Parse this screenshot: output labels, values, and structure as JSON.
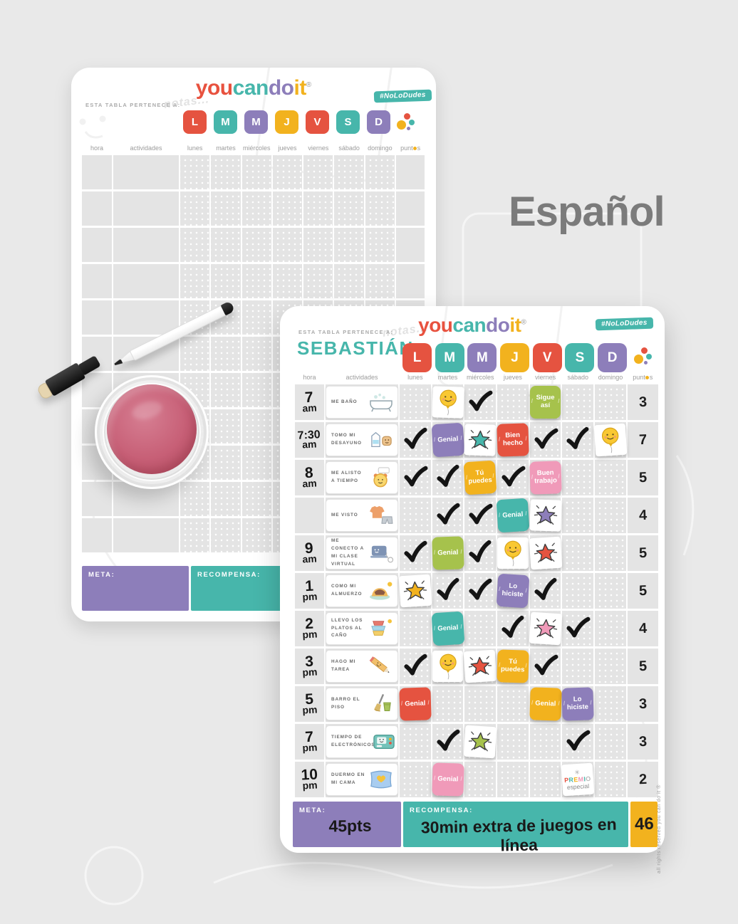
{
  "page": {
    "background_label": "Español"
  },
  "brand": {
    "logo": [
      {
        "text": "you",
        "color": "#e8523f"
      },
      {
        "text": "can",
        "color": "#47b6ab"
      },
      {
        "text": "do",
        "color": "#8d7eba"
      },
      {
        "text": "it",
        "color": "#f2b21e"
      }
    ],
    "registered_mark": "®",
    "hashtag": "#NoLoDudes"
  },
  "palette": {
    "red": "#e55340",
    "teal": "#47b6ab",
    "purple": "#8d7eba",
    "yellow": "#f2b21e",
    "green": "#a6c24c",
    "pink": "#f09ab9"
  },
  "days": {
    "letters": [
      "L",
      "M",
      "M",
      "J",
      "V",
      "S",
      "D"
    ],
    "letter_colors": [
      "red",
      "teal",
      "purple",
      "yellow",
      "red",
      "teal",
      "purple"
    ],
    "labels": [
      "lunes",
      "martes",
      "miércoles",
      "jueves",
      "viernes",
      "sábado",
      "domingo"
    ]
  },
  "column_headers": {
    "hora": "hora",
    "actividades": "actividades",
    "puntos": "puntos"
  },
  "back_board": {
    "belongs_label": "ESTA TABLA PERTENECE A:",
    "notes_doodle": "notas...",
    "meta_label": "META:",
    "reward_label": "RECOMPENSA:",
    "empty_rows": 11
  },
  "front_board": {
    "belongs_label": "ESTA TABLA PERTENECE A:",
    "notes_doodle": "notas...",
    "child_name": "SEBASTIÁN",
    "meta_label": "META:",
    "meta_value": "45pts",
    "reward_label": "RECOMPENSA:",
    "reward_value": "30min extra de juegos en línea",
    "total_points": "46",
    "side_note": "all rights reserved you can do it ®",
    "premio_sticker": {
      "top": "PREMIO",
      "bottom": "especial",
      "letter_colors": [
        "#e55340",
        "#47b6ab",
        "#f2b21e",
        "#f09ab9",
        "#47b6ab",
        "#b9b9b9"
      ]
    },
    "rows": [
      {
        "time": "7 am",
        "activity": "ME BAÑO",
        "icon": "bathtub-icon",
        "points": "3",
        "cells": [
          null,
          {
            "type": "balloon-sticker"
          },
          {
            "type": "check"
          },
          null,
          {
            "type": "label-sticker",
            "label": "Sigue así",
            "color": "green"
          },
          null,
          null
        ]
      },
      {
        "time": "7:30 am",
        "activity": "TOMO MI DESAYUNO",
        "icon": "breakfast-icon",
        "points": "7",
        "cells": [
          {
            "type": "check"
          },
          {
            "type": "label-sticker",
            "label": "Genial",
            "color": "purple"
          },
          {
            "type": "star-sticker",
            "color": "teal"
          },
          {
            "type": "label-sticker",
            "label": "Bien hecho",
            "color": "red"
          },
          {
            "type": "check"
          },
          {
            "type": "check"
          },
          {
            "type": "balloon-sticker"
          }
        ]
      },
      {
        "time": "8 am",
        "activity": "ME ALISTO A TIEMPO",
        "icon": "alarm-clock-icon",
        "points": "5",
        "cells": [
          {
            "type": "check"
          },
          {
            "type": "check"
          },
          {
            "type": "label-sticker",
            "label": "Tú puedes",
            "color": "yellow"
          },
          {
            "type": "check"
          },
          {
            "type": "label-sticker",
            "label": "Buen trabajo",
            "color": "pink"
          },
          null,
          null
        ]
      },
      {
        "time": "",
        "activity": "ME VISTO",
        "icon": "clothes-icon",
        "points": "4",
        "cells": [
          null,
          {
            "type": "check"
          },
          {
            "type": "check"
          },
          {
            "type": "label-sticker",
            "label": "Genial",
            "color": "teal"
          },
          {
            "type": "star-sticker",
            "color": "purple"
          },
          null,
          null
        ]
      },
      {
        "time": "9 am",
        "activity": "ME CONECTO A MI CLASE VIRTUAL",
        "icon": "laptop-icon",
        "points": "5",
        "cells": [
          {
            "type": "check"
          },
          {
            "type": "label-sticker",
            "label": "Genial",
            "color": "green"
          },
          {
            "type": "check"
          },
          {
            "type": "balloon-sticker"
          },
          {
            "type": "star-sticker",
            "color": "red"
          },
          null,
          null
        ]
      },
      {
        "time": "1 pm",
        "activity": "COMO MI ALMUERZO",
        "icon": "lunch-plate-icon",
        "points": "5",
        "cells": [
          {
            "type": "star-sticker",
            "color": "yellow"
          },
          {
            "type": "check"
          },
          {
            "type": "check"
          },
          {
            "type": "label-sticker",
            "label": "Lo hiciste",
            "color": "purple"
          },
          {
            "type": "check"
          },
          null,
          null
        ]
      },
      {
        "time": "2 pm",
        "activity": "LLEVO LOS PLATOS AL CAÑO",
        "icon": "dishes-icon",
        "points": "4",
        "cells": [
          null,
          {
            "type": "label-sticker",
            "label": "Genial",
            "color": "teal"
          },
          null,
          {
            "type": "check"
          },
          {
            "type": "star-sticker",
            "color": "pink"
          },
          {
            "type": "check"
          },
          null
        ]
      },
      {
        "time": "3 pm",
        "activity": "HAGO MI TAREA",
        "icon": "pencil-icon",
        "points": "5",
        "cells": [
          {
            "type": "check"
          },
          {
            "type": "balloon-sticker"
          },
          {
            "type": "star-sticker",
            "color": "red"
          },
          {
            "type": "label-sticker",
            "label": "Tú puedes",
            "color": "yellow"
          },
          {
            "type": "check"
          },
          null,
          null
        ]
      },
      {
        "time": "5 pm",
        "activity": "BARRO EL PISO",
        "icon": "broom-icon",
        "points": "3",
        "cells": [
          {
            "type": "label-sticker",
            "label": "Genial",
            "color": "red"
          },
          null,
          null,
          null,
          {
            "type": "label-sticker",
            "label": "Genial",
            "color": "yellow"
          },
          {
            "type": "label-sticker",
            "label": "Lo hiciste",
            "color": "purple"
          },
          null
        ]
      },
      {
        "time": "7 pm",
        "activity": "TIEMPO DE ELECTRÓNICOS",
        "icon": "game-console-icon",
        "points": "3",
        "cells": [
          null,
          {
            "type": "check"
          },
          {
            "type": "star-sticker",
            "color": "green"
          },
          null,
          null,
          {
            "type": "check"
          },
          null
        ]
      },
      {
        "time": "10 pm",
        "activity": "DUERMO EN MI CAMA",
        "icon": "pillow-icon",
        "points": "2",
        "cells": [
          null,
          {
            "type": "label-sticker",
            "label": "Genial",
            "color": "pink"
          },
          null,
          null,
          null,
          {
            "type": "premio-sticker"
          },
          null
        ]
      }
    ]
  }
}
